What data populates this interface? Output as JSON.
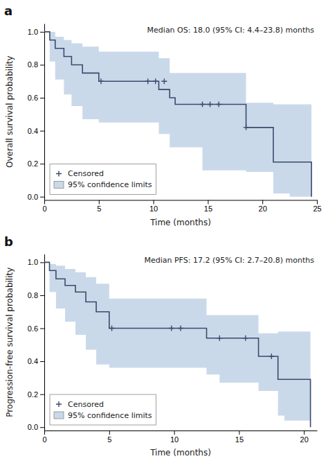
{
  "chart_data": [
    {
      "type": "step",
      "title": "a",
      "annotations": [
        "Median OS: 18.0 (95% CI: 4.4–23.8) months"
      ],
      "xlabel": "Time (months)",
      "ylabel": "Overall survival probability",
      "xlim": [
        0,
        25
      ],
      "ylim": [
        -0.02,
        1.05
      ],
      "xticks": [
        0,
        5,
        10,
        15,
        20,
        25
      ],
      "yticks": [
        {
          "value": 0,
          "label": "0.0"
        },
        0.2,
        0.4,
        0.6,
        0.8,
        {
          "value": 1,
          "label": "1.0"
        }
      ],
      "grid": false,
      "legend": "lower left",
      "x": [
        0,
        0.5,
        1.0,
        1.8,
        2.5,
        3.5,
        5.0,
        9.5,
        10.5,
        11.5,
        12.0,
        14.5,
        18.5,
        21.0,
        22.5,
        24.5
      ],
      "series": [
        {
          "type": "step",
          "color": "#3a4a6b",
          "values": [
            1.0,
            0.95,
            0.9,
            0.85,
            0.8,
            0.75,
            0.7,
            0.7,
            0.65,
            0.6,
            0.56,
            0.56,
            0.42,
            0.21,
            0.21,
            0.0
          ]
        },
        {
          "name": "Censored",
          "type": "scatter",
          "marker": "plus",
          "color": "#3a4a6b",
          "x": [
            5.2,
            9.5,
            10.2,
            11.0,
            14.5,
            15.2,
            16.0,
            18.5
          ],
          "values": [
            0.7,
            0.7,
            0.7,
            0.7,
            0.56,
            0.56,
            0.56,
            0.42
          ]
        },
        {
          "name": "95% confidence limits",
          "type": "band",
          "color": "#adc4df",
          "upper": [
            1.0,
            1.0,
            0.97,
            0.95,
            0.93,
            0.91,
            0.88,
            0.88,
            0.84,
            0.75,
            0.75,
            0.75,
            0.57,
            0.56,
            0.56,
            0.56
          ],
          "lower": [
            1.0,
            0.82,
            0.71,
            0.62,
            0.55,
            0.47,
            0.45,
            0.45,
            0.38,
            0.3,
            0.3,
            0.16,
            0.15,
            0.02,
            0.0,
            0.0
          ]
        }
      ]
    },
    {
      "type": "step",
      "title": "b",
      "annotations": [
        "Median PFS: 17.2 (95% CI: 2.7–20.8) months"
      ],
      "xlabel": "Time (months)",
      "ylabel": "Progression-free survival probability",
      "xlim": [
        0,
        21
      ],
      "ylim": [
        -0.02,
        1.05
      ],
      "xticks": [
        0,
        5,
        10,
        15,
        20
      ],
      "yticks": [
        {
          "value": 0,
          "label": "0.0"
        },
        0.2,
        0.4,
        0.6,
        0.8,
        {
          "value": 1,
          "label": "1.0"
        }
      ],
      "grid": false,
      "legend": "lower left",
      "x": [
        0,
        0.4,
        0.9,
        1.6,
        2.4,
        3.2,
        4.0,
        5.0,
        10.5,
        12.5,
        13.5,
        16.5,
        18.0,
        18.5,
        20.5
      ],
      "series": [
        {
          "type": "step",
          "color": "#3a4a6b",
          "values": [
            1.0,
            0.95,
            0.9,
            0.86,
            0.82,
            0.76,
            0.7,
            0.6,
            0.6,
            0.54,
            0.54,
            0.43,
            0.29,
            0.29,
            0.0
          ]
        },
        {
          "name": "Censored",
          "type": "scatter",
          "marker": "plus",
          "color": "#3a4a6b",
          "x": [
            5.2,
            9.8,
            10.5,
            13.5,
            15.5,
            17.5
          ],
          "values": [
            0.6,
            0.6,
            0.6,
            0.54,
            0.54,
            0.43
          ]
        },
        {
          "name": "95% confidence limits",
          "type": "band",
          "color": "#adc4df",
          "upper": [
            1.0,
            0.99,
            0.98,
            0.96,
            0.94,
            0.91,
            0.87,
            0.78,
            0.78,
            0.68,
            0.68,
            0.57,
            0.58,
            0.58,
            0.58
          ],
          "lower": [
            1.0,
            0.82,
            0.72,
            0.64,
            0.56,
            0.47,
            0.38,
            0.36,
            0.36,
            0.32,
            0.27,
            0.22,
            0.07,
            0.04,
            0.0
          ]
        }
      ]
    }
  ]
}
